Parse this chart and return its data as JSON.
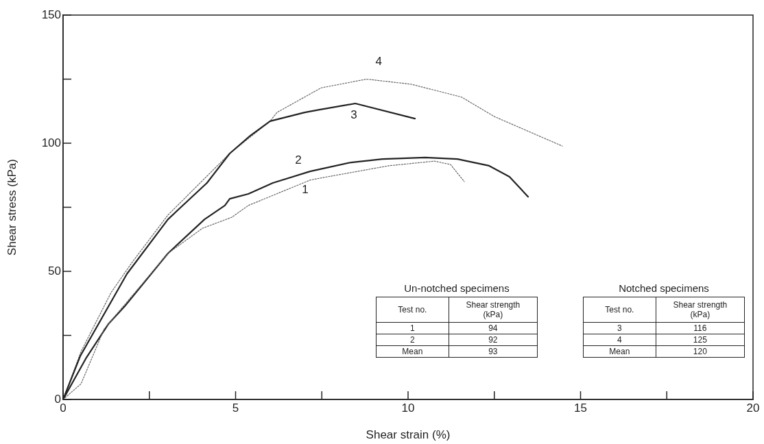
{
  "chart_data": {
    "type": "line",
    "xlabel": "Shear strain (%)",
    "ylabel": "Shear stress (kPa)",
    "xlim": [
      0,
      20
    ],
    "ylim": [
      0,
      150
    ],
    "xticks": [
      0,
      {
        "value": 2.5,
        "label": null
      },
      5,
      {
        "value": 7.5,
        "label": null
      },
      10,
      {
        "value": 12.5,
        "label": null
      },
      15,
      {
        "value": 17.5,
        "label": null
      },
      20
    ],
    "yticks": [
      0,
      {
        "value": 25,
        "label": null
      },
      50,
      {
        "value": 75,
        "label": null
      },
      100,
      {
        "value": 125,
        "label": null
      },
      150
    ],
    "grid": false,
    "legend": false,
    "marker": "none",
    "series": [
      {
        "name": "1",
        "color": "#666666",
        "line_style": "dotted",
        "x": [
          0,
          0.52,
          1.19,
          3.04,
          4.04,
          4.89,
          5.37,
          7.16,
          7.46,
          9.44,
          10.76,
          11.23,
          11.63
        ],
        "values": [
          0,
          6.1,
          27.5,
          57,
          66.8,
          71.1,
          75.7,
          85.6,
          86.4,
          91.2,
          93,
          91.7,
          85
        ]
      },
      {
        "name": "2",
        "color": "#222222",
        "line_style": "solid",
        "x": [
          0,
          0.66,
          1.31,
          1.79,
          3.04,
          4.1,
          4.69,
          4.83,
          5.37,
          6.08,
          7.16,
          8.35,
          9.26,
          10.5,
          11.43,
          12.35,
          12.94,
          13.48
        ],
        "values": [
          0,
          16,
          29.4,
          36.4,
          57,
          70.3,
          75.7,
          78.3,
          80.2,
          84.5,
          89,
          92.5,
          93.8,
          94.4,
          93.8,
          91.2,
          86.9,
          79.1
        ]
      },
      {
        "name": "3",
        "color": "#222222",
        "line_style": "solid",
        "x": [
          0,
          0.5,
          1.85,
          3.04,
          4.17,
          4.83,
          5.43,
          6,
          7,
          7.4,
          8.47,
          10.2
        ],
        "values": [
          0,
          17,
          49,
          70.3,
          84.5,
          96,
          103,
          108.6,
          112,
          113,
          115.5,
          109.6
        ]
      },
      {
        "name": "4",
        "color": "#666666",
        "line_style": "dotted",
        "x": [
          0,
          0.52,
          1.39,
          2,
          3.04,
          4.83,
          6,
          6.2,
          7.48,
          8.8,
          10.1,
          11.55,
          12.5,
          14.47
        ],
        "values": [
          0,
          18.7,
          41.7,
          53.5,
          72,
          96,
          108.6,
          112,
          121.6,
          125,
          123,
          118,
          110.4,
          98.9
        ]
      }
    ],
    "annotations": [
      "Un-notched specimens",
      "Test no.",
      "Shear strength (kPa)",
      "1",
      "94",
      "2",
      "92",
      "Mean",
      "93",
      "Notched specimens",
      "Test no.",
      "Shear strength (kPa)",
      "3",
      "116",
      "4",
      "125",
      "Mean",
      "120"
    ]
  }
}
